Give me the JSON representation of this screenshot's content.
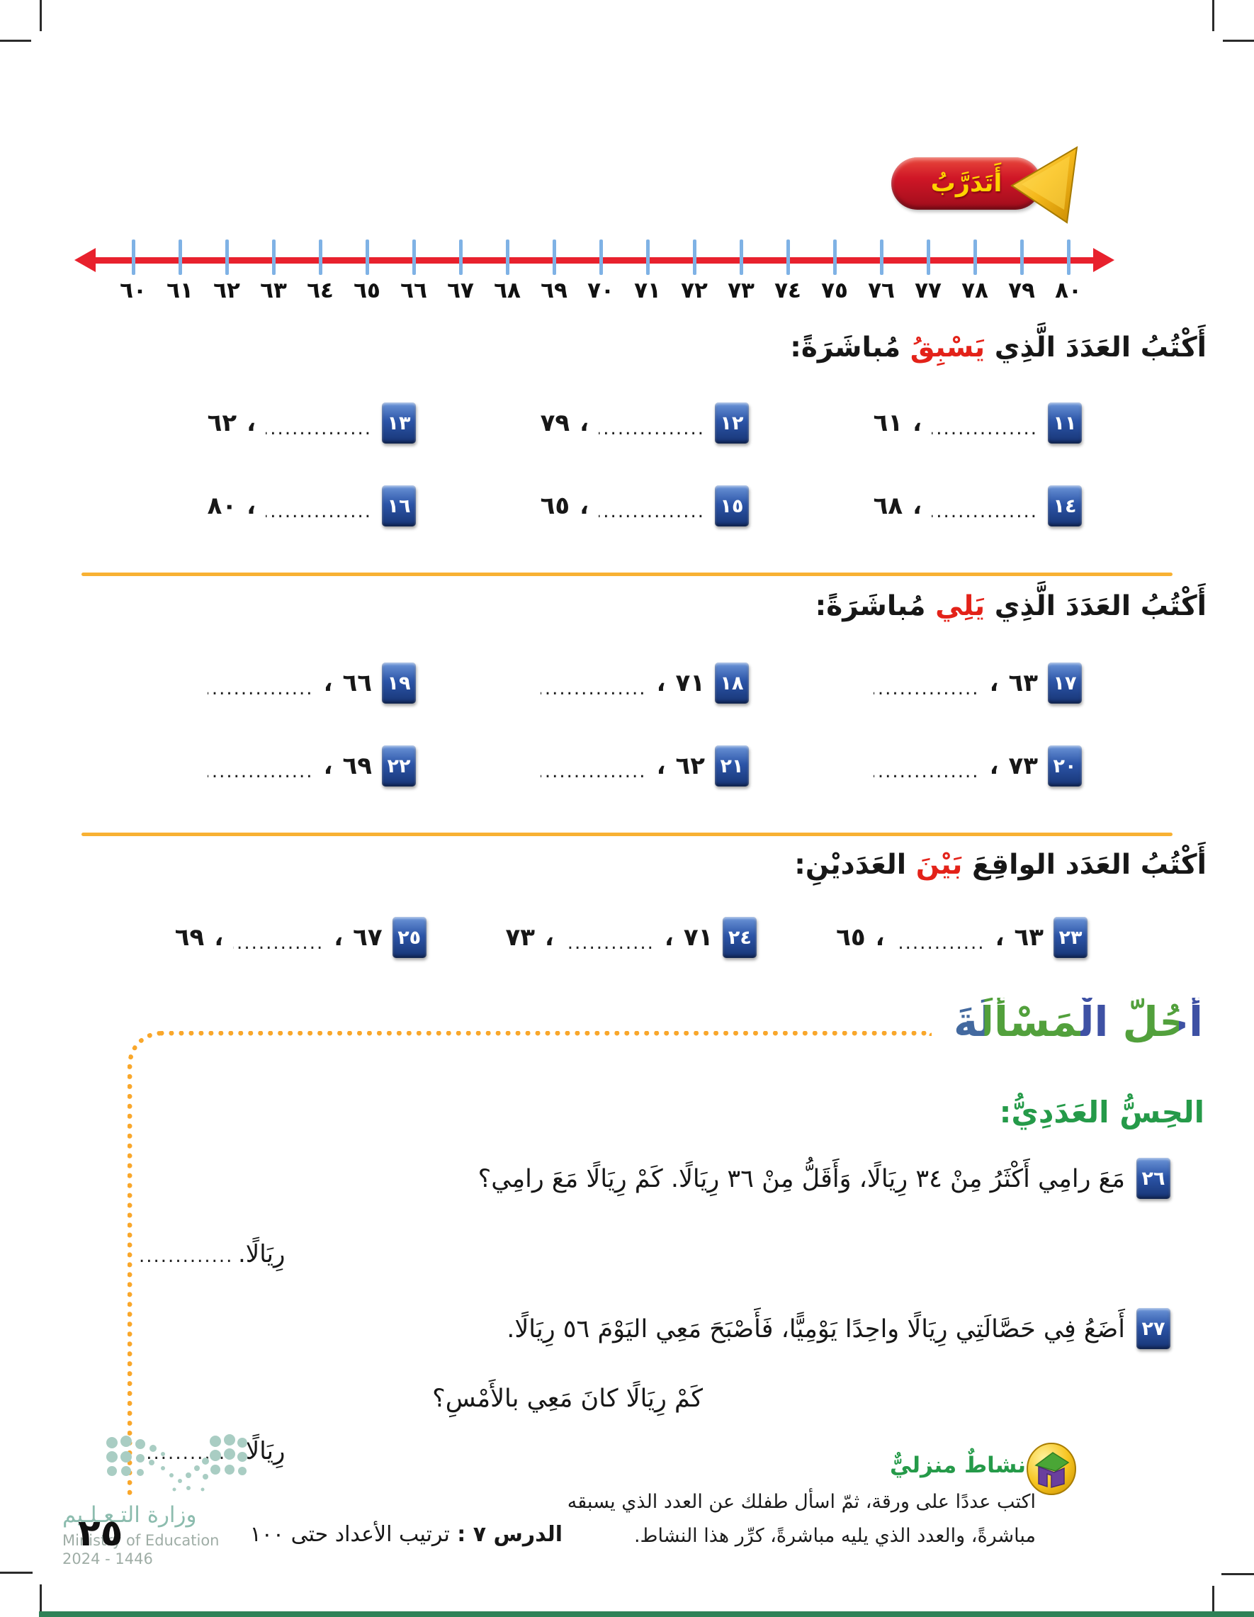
{
  "practice_badge": {
    "label": "أَتَدَرَّبُ"
  },
  "number_line": {
    "labels": [
      "٦٠",
      "٦١",
      "٦٢",
      "٦٣",
      "٦٤",
      "٦٥",
      "٦٦",
      "٦٧",
      "٦٨",
      "٦٩",
      "٧٠",
      "٧١",
      "٧٢",
      "٧٣",
      "٧٤",
      "٧٥",
      "٧٦",
      "٧٧",
      "٧٨",
      "٧٩",
      "٨٠"
    ]
  },
  "sections": [
    {
      "title_pre": "أَكْتُبُ العَدَدَ الَّذِي ",
      "keyword": "يَسْبِقُ",
      "title_post": " مُباشَرَةً:",
      "pattern": "blank_number",
      "items": [
        {
          "num": "١١",
          "value": "٦١"
        },
        {
          "num": "١٢",
          "value": "٧٩"
        },
        {
          "num": "١٣",
          "value": "٦٢"
        },
        {
          "num": "١٤",
          "value": "٦٨"
        },
        {
          "num": "١٥",
          "value": "٦٥"
        },
        {
          "num": "١٦",
          "value": "٨٠"
        }
      ]
    },
    {
      "title_pre": "أَكْتُبُ العَدَدَ الَّذِي ",
      "keyword": "يَلِي",
      "title_post": " مُباشَرَةً:",
      "pattern": "number_blank",
      "items": [
        {
          "num": "١٧",
          "value": "٦٣"
        },
        {
          "num": "١٨",
          "value": "٧١"
        },
        {
          "num": "١٩",
          "value": "٦٦"
        },
        {
          "num": "٢٠",
          "value": "٧٣"
        },
        {
          "num": "٢١",
          "value": "٦٢"
        },
        {
          "num": "٢٢",
          "value": "٦٩"
        }
      ]
    },
    {
      "title_pre": "أَكْتُبُ العَدَد الواقِعَ ",
      "keyword": "بَيْنَ",
      "title_post": " العَدَديْنِ:",
      "pattern": "number_blank_number",
      "items": [
        {
          "num": "٢٣",
          "first": "٦٣",
          "second": "٦٥"
        },
        {
          "num": "٢٤",
          "first": "٧١",
          "second": "٧٣"
        },
        {
          "num": "٢٥",
          "first": "٦٧",
          "second": "٦٩"
        }
      ]
    }
  ],
  "solve_problem": {
    "title_word1": "أَحُلُّ",
    "title_word2": "الْمَسْأَلَةَ",
    "subtitle": "الحِسُّ العَدَدِيُّ:",
    "problems": [
      {
        "num": "٢٦",
        "text": "مَعَ رامِي أَكْثَرُ مِنْ ٣٤ رِيَالًا، وَأَقَلُّ مِنْ ٣٦ رِيَالًا. كَمْ رِيَالًا مَعَ رامِي؟",
        "answer_unit": "رِيَالًا."
      },
      {
        "num": "٢٧",
        "text": "أَضَعُ فِي حَصَّالَتِي رِيَالًا واحِدًا يَوْمِيًّا، فَأَصْبَحَ مَعِي اليَوْمَ ٥٦ رِيَالًا.",
        "text2": "كَمْ رِيَالًا كانَ مَعِي بالأَمْسِ؟",
        "answer_unit": "رِيَالًا."
      }
    ]
  },
  "home_activity": {
    "label": "نشاطٌ منزليٌّ",
    "line1": "اكتب عددًا على ورقة، ثمّ اسأل طفلك عن العدد الذي يسبقه",
    "line2": "مباشرةً، والعدد الذي يليه مباشرةً، كرِّر هذا النشاط."
  },
  "footer": {
    "ministry_ar": "وزارة التـعـلـيم",
    "ministry_en": "Ministry of Education",
    "year": "2024 - 1446",
    "lesson_label": "الدرس ٧ : ",
    "lesson_title": "ترتيب الأعداد حتى ١٠٠",
    "page_number": "٢٥"
  },
  "colors": {
    "accent_red": "#e8212d",
    "keyword_red": "#e32219",
    "badge_blue": "#2c55a8",
    "tick_blue": "#7fb2e5",
    "divider_orange": "#f8b133",
    "dotted_orange": "#f9a72b",
    "green": "#259a49",
    "title_blue": "#3e51a4",
    "title_green": "#52a03c",
    "ministry_teal": "#8cbcae",
    "practice_red": "#cf1626",
    "practice_yellow": "#ffd200"
  }
}
